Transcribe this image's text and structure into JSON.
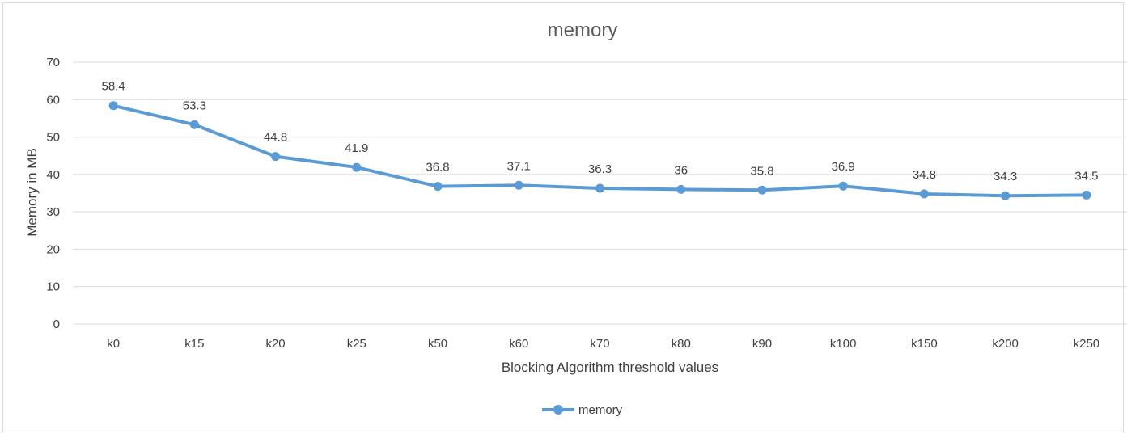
{
  "chart_data": {
    "type": "line",
    "title": "memory",
    "xlabel": "Blocking Algorithm threshold values",
    "ylabel": "Memory in MB",
    "ylim": [
      0,
      70
    ],
    "ytick_step": 10,
    "grid": true,
    "legend_position": "bottom",
    "categories": [
      "k0",
      "k15",
      "k20",
      "k25",
      "k50",
      "k60",
      "k70",
      "k80",
      "k90",
      "k100",
      "k150",
      "k200",
      "k250"
    ],
    "series": [
      {
        "name": "memory",
        "color": "#5b9bd5",
        "values": [
          58.4,
          53.3,
          44.8,
          41.9,
          36.8,
          37.1,
          36.3,
          36,
          35.8,
          36.9,
          34.8,
          34.3,
          34.5
        ],
        "data_labels": [
          "58.4",
          "53.3",
          "44.8",
          "41.9",
          "36.8",
          "37.1",
          "36.3",
          "36",
          "35.8",
          "36.9",
          "34.8",
          "34.3",
          "34.5"
        ]
      }
    ]
  }
}
